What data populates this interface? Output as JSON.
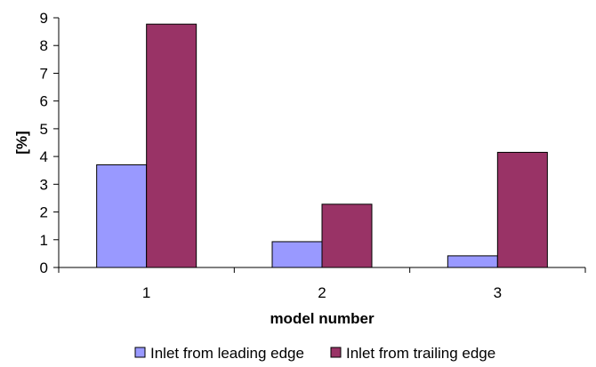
{
  "chart_data": {
    "type": "bar",
    "categories": [
      "1",
      "2",
      "3"
    ],
    "series": [
      {
        "name": "Inlet from leading edge",
        "values": [
          3.7,
          0.93,
          0.42
        ],
        "color": "#9999ff"
      },
      {
        "name": "Inlet from trailing edge",
        "values": [
          8.77,
          2.28,
          4.15
        ],
        "color": "#993366"
      }
    ],
    "xlabel": "model number",
    "ylabel": "[%]",
    "ylim": [
      0,
      9
    ],
    "yticks": [
      "0",
      "1",
      "2",
      "3",
      "4",
      "5",
      "6",
      "7",
      "8",
      "9"
    ],
    "grid": false,
    "legend_position": "bottom"
  }
}
